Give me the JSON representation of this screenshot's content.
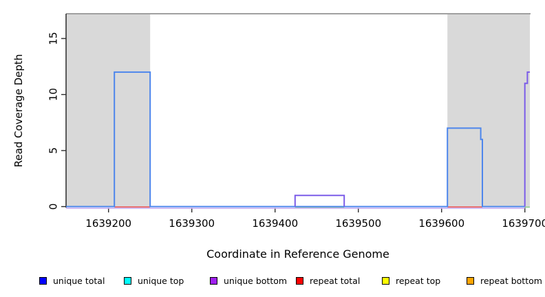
{
  "axes": {
    "x_title": "Coordinate in Reference Genome",
    "y_title": "Read Coverage Depth"
  },
  "chart_data": {
    "type": "line",
    "subtype": "step-coverage",
    "title": "",
    "xlabel": "Coordinate in Reference Genome",
    "ylabel": "Read Coverage Depth",
    "xlim": [
      1639149,
      1639706
    ],
    "ylim": [
      0,
      17.3
    ],
    "grid": false,
    "x_ticks": [
      {
        "v": 1639200,
        "label": "1639200"
      },
      {
        "v": 1639300,
        "label": "1639300"
      },
      {
        "v": 1639400,
        "label": "1639400"
      },
      {
        "v": 1639500,
        "label": "1639500"
      },
      {
        "v": 1639600,
        "label": "1639600"
      },
      {
        "v": 1639700,
        "label": "1639700"
      }
    ],
    "y_ticks": [
      {
        "v": 0,
        "label": "0"
      },
      {
        "v": 5,
        "label": "5"
      },
      {
        "v": 10,
        "label": "10"
      },
      {
        "v": 15,
        "label": "15"
      }
    ],
    "shaded_regions": [
      {
        "x0": 1639149,
        "x1": 1639250,
        "color": "#d9d9d9"
      },
      {
        "x0": 1639607,
        "x1": 1639706,
        "color": "#d9d9d9"
      }
    ],
    "series": [
      {
        "name": "unique total",
        "color": "#0000ff",
        "steps": [
          [
            1639149,
            0
          ],
          [
            1639207,
            12
          ],
          [
            1639250,
            0
          ],
          [
            1639607,
            7
          ],
          [
            1639647,
            6
          ],
          [
            1639649,
            0
          ],
          [
            1639700,
            12
          ],
          [
            1639706,
            12
          ]
        ]
      },
      {
        "name": "unique top",
        "color": "#00ffff",
        "steps": [
          [
            1639149,
            0
          ],
          [
            1639706,
            0
          ]
        ]
      },
      {
        "name": "unique bottom",
        "color": "#a020f0",
        "steps": [
          [
            1639149,
            0
          ],
          [
            1639424,
            1
          ],
          [
            1639483,
            0
          ],
          [
            1639700,
            11
          ],
          [
            1639703,
            12
          ],
          [
            1639706,
            12
          ]
        ]
      },
      {
        "name": "repeat total",
        "color": "#ff0000",
        "steps": [
          [
            1639149,
            0
          ],
          [
            1639706,
            0
          ]
        ]
      },
      {
        "name": "repeat top",
        "color": "#ffff00",
        "steps": [
          [
            1639149,
            0
          ],
          [
            1639706,
            0
          ]
        ]
      },
      {
        "name": "repeat bottom",
        "color": "#ffa500",
        "steps": [
          [
            1639149,
            0
          ],
          [
            1639706,
            0
          ]
        ]
      }
    ],
    "legend": {
      "position": "bottom",
      "items": [
        {
          "label": "unique total",
          "color": "#0000ff"
        },
        {
          "label": "unique top",
          "color": "#00ffff"
        },
        {
          "label": "unique bottom",
          "color": "#a020f0"
        },
        {
          "label": "repeat total",
          "color": "#ff0000"
        },
        {
          "label": "repeat top",
          "color": "#ffff00"
        },
        {
          "label": "repeat bottom",
          "color": "#ffa500"
        }
      ]
    },
    "render_paths": [
      {
        "name": "unique-bottom-baseline",
        "color": "#c9b0f2",
        "width": 1.6,
        "dy": 2.4,
        "points": [
          [
            1639149,
            0
          ],
          [
            1639700,
            0
          ]
        ]
      },
      {
        "name": "repeat-total-segment-left",
        "color": "#e85555",
        "width": 1.6,
        "dy": 0.6,
        "points": [
          [
            1639207,
            0
          ],
          [
            1639250,
            0
          ]
        ]
      },
      {
        "name": "repeat-total-segment-right",
        "color": "#e85555",
        "width": 1.6,
        "dy": 0.6,
        "points": [
          [
            1639607,
            0
          ],
          [
            1639649,
            0
          ]
        ]
      },
      {
        "name": "overlap-green-segment-mid",
        "color": "#8fce8f",
        "width": 1.6,
        "dy": 0.8,
        "points": [
          [
            1639424,
            0
          ],
          [
            1639483,
            0
          ]
        ]
      },
      {
        "name": "overlap-green-segment-right",
        "color": "#8fce8f",
        "width": 1.6,
        "dy": 0.8,
        "points": [
          [
            1639700,
            0
          ],
          [
            1639706,
            0
          ]
        ]
      },
      {
        "name": "unique-total-line",
        "color": "#4d86ec",
        "width": 2,
        "dy": 0,
        "points": [
          [
            1639149,
            0
          ],
          [
            1639207,
            0
          ],
          [
            1639207,
            12
          ],
          [
            1639250,
            12
          ],
          [
            1639250,
            0
          ],
          [
            1639607,
            0
          ],
          [
            1639607,
            7
          ],
          [
            1639647,
            7
          ],
          [
            1639647,
            6
          ],
          [
            1639649,
            6
          ],
          [
            1639649,
            0
          ],
          [
            1639700,
            0
          ]
        ]
      },
      {
        "name": "unique-bottom-box-mid",
        "color": "#7b5ce8",
        "width": 2,
        "dy": 0,
        "points": [
          [
            1639424,
            0
          ],
          [
            1639424,
            1
          ],
          [
            1639483,
            1
          ],
          [
            1639483,
            0
          ]
        ]
      },
      {
        "name": "unique-bottom-step-right",
        "color": "#7b5ce8",
        "width": 2,
        "dy": 0,
        "points": [
          [
            1639700,
            0
          ],
          [
            1639700,
            11
          ],
          [
            1639703,
            11
          ],
          [
            1639703,
            12
          ],
          [
            1639706,
            12
          ]
        ]
      }
    ],
    "frame": {
      "top_border_color": "#808080",
      "axis_color": "#2b2b2b",
      "tick_color": "#2b2b2b"
    }
  }
}
